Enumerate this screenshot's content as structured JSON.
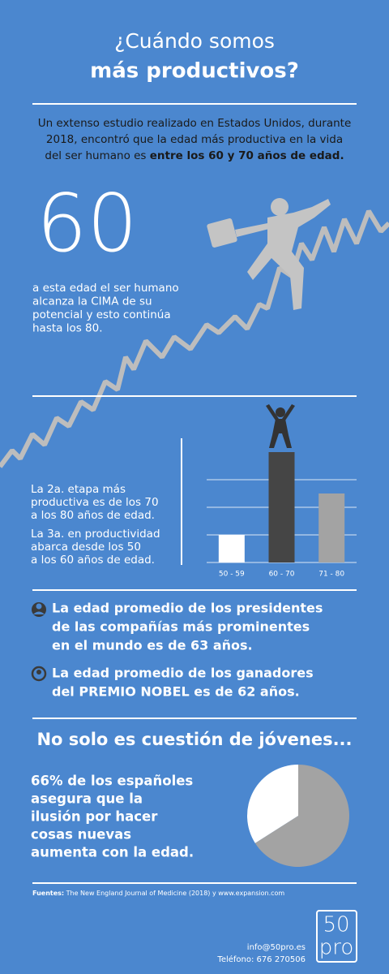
{
  "header": {
    "title_line1": "¿Cuándo somos",
    "title_line2": "más productivos?"
  },
  "intro": {
    "lines": [
      "Un extenso estudio realizado en Estados Unidos, durante",
      "2018, encontró que la edad más productiva en la vida",
      "del ser humano es "
    ],
    "bold": "entre los 60 y 70 años de edad."
  },
  "peak": {
    "number": "60",
    "lines": [
      "a esta edad el ser humano",
      "alcanza la CIMA de su",
      "potencial y esto continúa",
      "hasta los 80."
    ]
  },
  "stages": {
    "second": [
      "La 2a. etapa más",
      "productiva es de los 70",
      "a los 80 años de edad."
    ],
    "third": [
      "La 3a. en productividad",
      "abarca desde los 50",
      "a los 60 años de edad."
    ]
  },
  "chart_data": [
    {
      "type": "bar",
      "categories": [
        "50 - 59",
        "60 - 70",
        "71 - 80"
      ],
      "values": [
        1,
        4,
        2.5
      ],
      "colors": [
        "#ffffff",
        "#454545",
        "#a3a3a3"
      ],
      "ylim": [
        0,
        4
      ],
      "yticks": [
        0,
        1,
        2,
        3
      ],
      "grid": true
    },
    {
      "type": "pie",
      "values": [
        66,
        34
      ],
      "colors": [
        "#a3a3a3",
        "#ffffff"
      ]
    }
  ],
  "facts": [
    [
      "La edad promedio de los presidentes",
      "de las compañías más prominentes",
      "en el mundo es de 63 años."
    ],
    [
      "La edad promedio de los ganadores",
      "del PREMIO NOBEL es de 62 años."
    ]
  ],
  "youth": {
    "heading": "No solo es cuestión de jóvenes...",
    "lines": [
      "66% de los españoles",
      "asegura que la",
      "ilusión por hacer",
      "cosas nuevas",
      "aumenta con la edad."
    ]
  },
  "footer": {
    "sources_label": "Fuentes:",
    "sources": " The New England Journal of Medicine (2018) y www.expansion.com",
    "logo_top": "50",
    "logo_bottom": "pro",
    "email": "info@50pro.es",
    "phone": "Teléfono: 676 270506"
  }
}
